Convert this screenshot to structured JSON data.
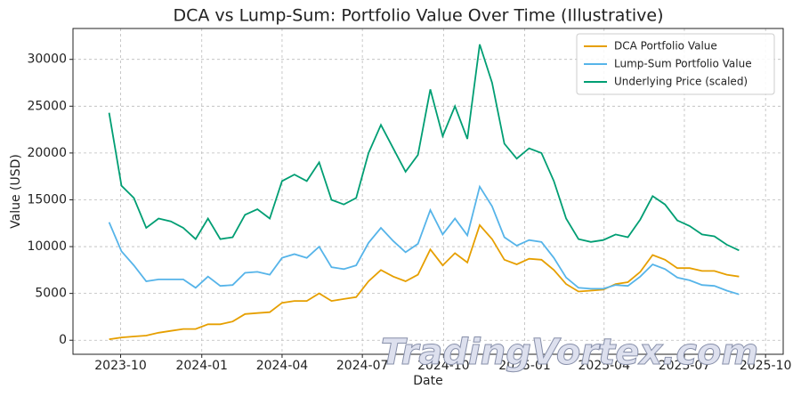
{
  "chart_data": {
    "type": "line",
    "title": "DCA vs Lump-Sum: Portfolio Value Over Time (Illustrative)",
    "x_label": "Date",
    "y_label": "Value (USD)",
    "watermark": "TradingVortex.com",
    "x": [
      "2023-09-18",
      "2023-10-02",
      "2023-10-16",
      "2023-10-30",
      "2023-11-13",
      "2023-11-27",
      "2023-12-11",
      "2023-12-25",
      "2024-01-08",
      "2024-01-22",
      "2024-02-05",
      "2024-02-19",
      "2024-03-04",
      "2024-03-18",
      "2024-04-01",
      "2024-04-15",
      "2024-04-29",
      "2024-05-13",
      "2024-05-27",
      "2024-06-10",
      "2024-06-24",
      "2024-07-08",
      "2024-07-22",
      "2024-08-05",
      "2024-08-19",
      "2024-09-02",
      "2024-09-16",
      "2024-09-30",
      "2024-10-14",
      "2024-10-28",
      "2024-11-11",
      "2024-11-25",
      "2024-12-09",
      "2024-12-23",
      "2025-01-06",
      "2025-01-20",
      "2025-02-03",
      "2025-02-17",
      "2025-03-03",
      "2025-03-17",
      "2025-03-31",
      "2025-04-14",
      "2025-04-28",
      "2025-05-12",
      "2025-05-26",
      "2025-06-09",
      "2025-06-23",
      "2025-07-07",
      "2025-07-21",
      "2025-08-04",
      "2025-08-18",
      "2025-09-01"
    ],
    "series": [
      {
        "name": "DCA Portfolio Value",
        "color": "#e69f00",
        "values": [
          100,
          300,
          400,
          500,
          800,
          1000,
          1200,
          1200,
          1700,
          1700,
          2000,
          2800,
          2900,
          3000,
          4000,
          4200,
          4200,
          5000,
          4200,
          4400,
          4600,
          6300,
          7500,
          6800,
          6300,
          7000,
          9700,
          8000,
          9300,
          8300,
          12300,
          10800,
          8600,
          8100,
          8700,
          8600,
          7500,
          6000,
          5200,
          5300,
          5400,
          6000,
          6200,
          7300,
          9100,
          8600,
          7700,
          7700,
          7400,
          7400,
          7000,
          6800
        ]
      },
      {
        "name": "Lump-Sum Portfolio Value",
        "color": "#56b4e9",
        "values": [
          12600,
          9500,
          8000,
          6300,
          6500,
          6500,
          6500,
          5600,
          6800,
          5800,
          5900,
          7200,
          7300,
          7000,
          8800,
          9200,
          8800,
          10000,
          7800,
          7600,
          8000,
          10400,
          12000,
          10600,
          9400,
          10300,
          13900,
          11300,
          13000,
          11200,
          16400,
          14300,
          11000,
          10100,
          10700,
          10500,
          8800,
          6700,
          5600,
          5500,
          5500,
          5900,
          5800,
          6800,
          8100,
          7600,
          6700,
          6400,
          5900,
          5800,
          5300,
          4900
        ]
      },
      {
        "name": "Underlying Price (scaled)",
        "color": "#009e73",
        "values": [
          24300,
          16500,
          15200,
          12000,
          13000,
          12700,
          12000,
          10800,
          13000,
          10800,
          11000,
          13400,
          14000,
          13000,
          17000,
          17700,
          17000,
          19000,
          15000,
          14500,
          15200,
          20000,
          23000,
          20500,
          18000,
          19800,
          26800,
          21800,
          25000,
          21500,
          31600,
          27500,
          21000,
          19400,
          20500,
          20000,
          17000,
          13000,
          10800,
          10500,
          10700,
          11300,
          11000,
          12900,
          15400,
          14500,
          12800,
          12200,
          11300,
          11100,
          10200,
          9600
        ]
      }
    ],
    "xlim": [
      "2023-08-08",
      "2025-10-21"
    ],
    "xticks": [
      "2023-10",
      "2024-01",
      "2024-04",
      "2024-07",
      "2024-10",
      "2025-01",
      "2025-04",
      "2025-07",
      "2025-10"
    ],
    "ylim": [
      -1500,
      33300
    ],
    "yticks": [
      0,
      5000,
      10000,
      15000,
      20000,
      25000,
      30000
    ],
    "grid": true,
    "legend": "upper right"
  }
}
